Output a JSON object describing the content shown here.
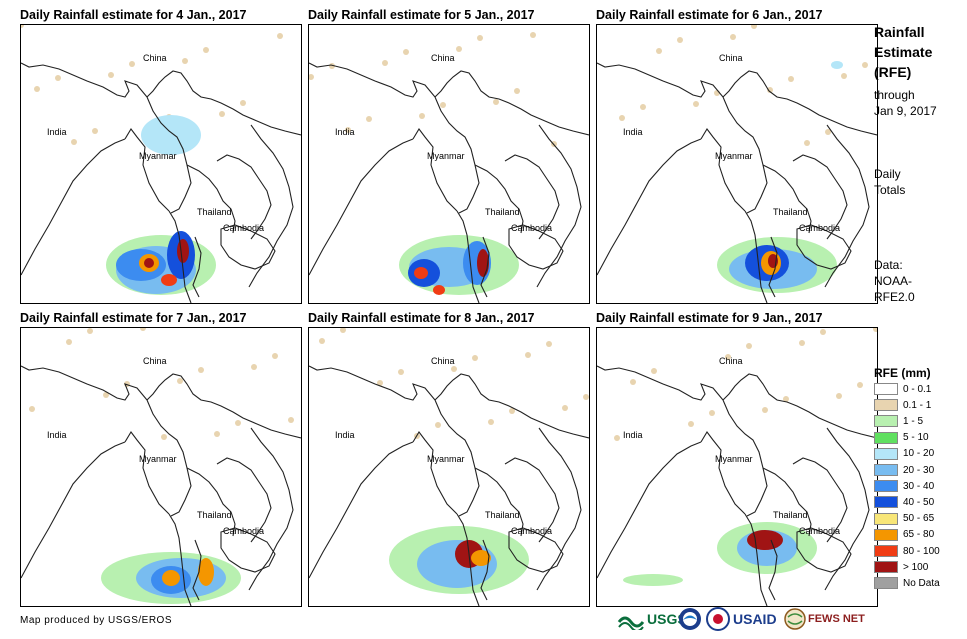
{
  "panels": [
    {
      "title": "Daily Rainfall estimate for 4 Jan., 2017",
      "preset": 0
    },
    {
      "title": "Daily Rainfall estimate for 5 Jan., 2017",
      "preset": 1
    },
    {
      "title": "Daily Rainfall estimate for 6 Jan., 2017",
      "preset": 2
    },
    {
      "title": "Daily Rainfall estimate for 7 Jan., 2017",
      "preset": 3
    },
    {
      "title": "Daily Rainfall estimate for 8 Jan., 2017",
      "preset": 4
    },
    {
      "title": "Daily Rainfall estimate for 9 Jan., 2017",
      "preset": 5
    }
  ],
  "map_labels": {
    "china": "China",
    "india": "India",
    "myanmar": "Myanmar",
    "thailand": "Thailand",
    "cambodia": "Cambodia"
  },
  "side": {
    "title_1": "Rainfall",
    "title_2": "Estimate",
    "title_3": "(RFE)",
    "through": "through",
    "date": "Jan 9, 2017",
    "daily": "Daily",
    "totals": "Totals",
    "data": "Data:",
    "noaa": "NOAA-",
    "rfe": "RFE2.0"
  },
  "legend": {
    "title": "RFE (mm)",
    "items": [
      {
        "label": "0 - 0.1",
        "color": "#ffffff"
      },
      {
        "label": "0.1 - 1",
        "color": "#e8d4b0"
      },
      {
        "label": "1 - 5",
        "color": "#b8f0b0"
      },
      {
        "label": "5 - 10",
        "color": "#60e060"
      },
      {
        "label": "10 - 20",
        "color": "#b4e6f8"
      },
      {
        "label": "20 - 30",
        "color": "#78bcf0"
      },
      {
        "label": "30 - 40",
        "color": "#3c8cf0"
      },
      {
        "label": "40 - 50",
        "color": "#1450dc"
      },
      {
        "label": "50 - 65",
        "color": "#f8e678"
      },
      {
        "label": "65 - 80",
        "color": "#f49600"
      },
      {
        "label": "80 - 100",
        "color": "#f03c14"
      },
      {
        "label": "> 100",
        "color": "#a01414"
      },
      {
        "label": "No Data",
        "color": "#a0a0a0"
      }
    ]
  },
  "credit": "Map produced by USGS/EROS",
  "logos": {
    "usgs": "USGS",
    "usaid": "USAID",
    "fews": "FEWS NET"
  }
}
